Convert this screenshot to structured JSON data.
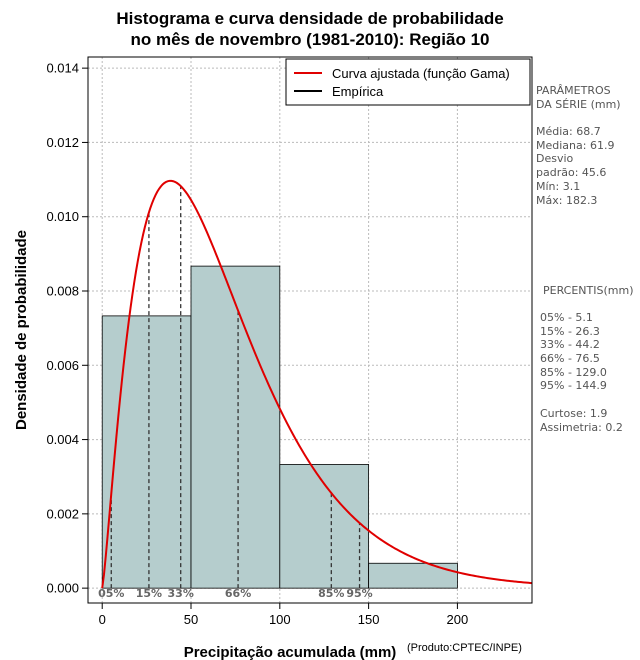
{
  "chart_data": {
    "type": "bar",
    "title": [
      "Histograma e curva densidade de probabilidade",
      "no mês de novembro (1981-2010): Região 10"
    ],
    "xlabel": "Precipitação acumulada (mm)",
    "xlabel_suffix": "(Produto:CPTEC/INPE)",
    "ylabel": "Densidade de probabilidade",
    "xlim": [
      -8,
      242
    ],
    "ylim": [
      -0.0004,
      0.0143
    ],
    "x_ticks": [
      0,
      50,
      100,
      150,
      200
    ],
    "y_ticks": [
      0.0,
      0.002,
      0.004,
      0.006,
      0.008,
      0.01,
      0.012,
      0.014
    ],
    "y_tick_labels": [
      "0.000",
      "0.002",
      "0.004",
      "0.006",
      "0.008",
      "0.010",
      "0.012",
      "0.014"
    ],
    "grid": true,
    "legend": {
      "position": "top-right",
      "entries": [
        {
          "label": "Curva ajustada (função Gama)",
          "color": "#e00000"
        },
        {
          "label": "Empírica",
          "color": "#000000"
        }
      ]
    },
    "bins": [
      {
        "from": 0,
        "to": 50,
        "density": 0.00733
      },
      {
        "from": 50,
        "to": 100,
        "density": 0.00867
      },
      {
        "from": 100,
        "to": 150,
        "density": 0.00333
      },
      {
        "from": 150,
        "to": 200,
        "density": 0.00067
      }
    ],
    "bar_color": "#b5cdcd",
    "gamma_fit": {
      "mean": 68.7,
      "sd": 45.6,
      "color": "#e00000"
    },
    "percentiles": [
      {
        "label": "05%",
        "value": 5.1
      },
      {
        "label": "15%",
        "value": 26.3
      },
      {
        "label": "33%",
        "value": 44.2
      },
      {
        "label": "66%",
        "value": 76.5
      },
      {
        "label": "85%",
        "value": 129.0
      },
      {
        "label": "95%",
        "value": 144.9
      }
    ]
  },
  "side_panel": {
    "params_title": [
      "PARÂMETROS",
      " DA SÉRIE (mm)"
    ],
    "params": [
      "Média:  68.7",
      "Mediana:  61.9",
      "Desvio",
      "padrão:  45.6",
      "Mín:  3.1",
      "Máx:  182.3"
    ],
    "percentis_title": "PERCENTIS(mm)",
    "percentis": [
      "05% -  5.1",
      "15% -  26.3",
      "33% -  44.2",
      "66% -  76.5",
      "85% -  129.0",
      "95% -  144.9"
    ],
    "stats": [
      "Curtose:  1.9",
      "Assimetria:  0.2"
    ]
  }
}
